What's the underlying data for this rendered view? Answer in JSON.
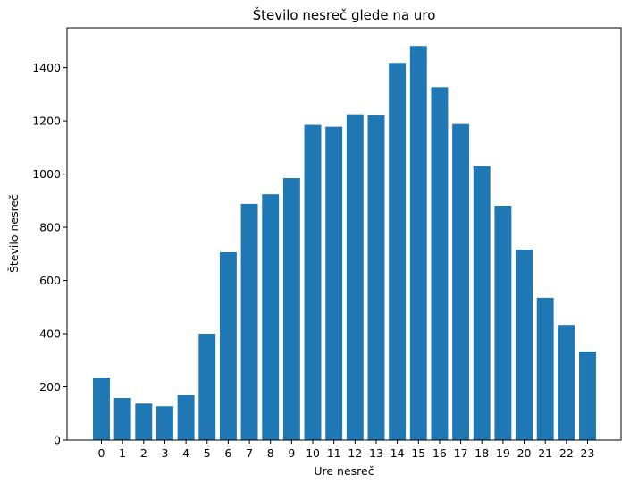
{
  "chart_data": {
    "type": "bar",
    "title": "Število nesreč glede na uro",
    "xlabel": "Ure nesreč",
    "ylabel": "Število nesreč",
    "categories": [
      "0",
      "1",
      "2",
      "3",
      "4",
      "5",
      "6",
      "7",
      "8",
      "9",
      "10",
      "11",
      "12",
      "13",
      "14",
      "15",
      "16",
      "17",
      "18",
      "19",
      "20",
      "21",
      "22",
      "23"
    ],
    "values": [
      235,
      158,
      137,
      127,
      170,
      400,
      706,
      888,
      924,
      985,
      1185,
      1178,
      1225,
      1222,
      1418,
      1482,
      1327,
      1188,
      1030,
      881,
      716,
      535,
      433,
      333
    ],
    "ylim": [
      0,
      1550
    ],
    "yticks": [
      0,
      200,
      400,
      600,
      800,
      1000,
      1200,
      1400
    ],
    "grid": false,
    "color": "#1f77b4"
  }
}
